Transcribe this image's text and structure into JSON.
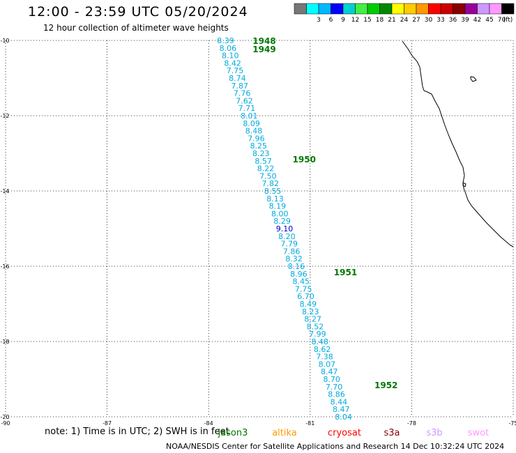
{
  "header": {
    "title": "12:00 - 23:59 UTC 05/20/2024",
    "subtitle": "12 hour collection of altimeter wave heights"
  },
  "legend": {
    "swatches": [
      {
        "color": "#777777",
        "label": ""
      },
      {
        "color": "#00ffff",
        "label": "3"
      },
      {
        "color": "#00b8ff",
        "label": "6"
      },
      {
        "color": "#0000ff",
        "label": "9"
      },
      {
        "color": "#00d0d0",
        "label": "12"
      },
      {
        "color": "#44ee44",
        "label": "15"
      },
      {
        "color": "#00cc00",
        "label": "18"
      },
      {
        "color": "#008800",
        "label": "21"
      },
      {
        "color": "#ffff00",
        "label": "24"
      },
      {
        "color": "#ffcc00",
        "label": "27"
      },
      {
        "color": "#ff9900",
        "label": "30"
      },
      {
        "color": "#ff0000",
        "label": "33"
      },
      {
        "color": "#cc0000",
        "label": "36"
      },
      {
        "color": "#880000",
        "label": "39"
      },
      {
        "color": "#990099",
        "label": "42"
      },
      {
        "color": "#cc99ff",
        "label": "45"
      },
      {
        "color": "#ff99ff",
        "label": "70"
      },
      {
        "color": "#000000",
        "label": "(ft)"
      }
    ]
  },
  "map": {
    "lon_range": [
      -90,
      -75
    ],
    "lat_range": [
      -20,
      -10
    ],
    "lat_labels": [
      "-10",
      "-12",
      "-14",
      "-16",
      "-18",
      "-20"
    ],
    "lon_labels": [
      "-90",
      "-87",
      "-84",
      "-81",
      "-78",
      "-75"
    ],
    "colors": {
      "swh": "#00aadd",
      "swh_max": "#0000cc",
      "time": "#007700"
    },
    "time_labels": [
      {
        "text": "1948",
        "lat": -10.0,
        "lon": -82.7
      },
      {
        "text": "1949",
        "lat": -10.22,
        "lon": -82.7
      },
      {
        "text": "1950",
        "lat": -13.15,
        "lon": -81.52
      },
      {
        "text": "1951",
        "lat": -16.15,
        "lon": -80.3
      },
      {
        "text": "1952",
        "lat": -19.15,
        "lon": -79.1
      }
    ],
    "track_start": {
      "lat": -10.0,
      "lon": -83.5
    },
    "track_step": {
      "lat": -0.2,
      "lon": 0.0697
    },
    "wave_heights": [
      "8.39",
      "8.06",
      "8.10",
      "8.42",
      "7.75",
      "8.74",
      "7.87",
      "7.76",
      "7.62",
      "7.71",
      "8.01",
      "8.09",
      "8.48",
      "7.96",
      "8.25",
      "8.23",
      "8.57",
      "8.22",
      "7.50",
      "7.82",
      "8.55",
      "8.13",
      "8.19",
      "8.00",
      "8.29",
      "9.10",
      "8.20",
      "7.79",
      "7.86",
      "8.32",
      "8.16",
      "8.96",
      "8.45",
      "7.75",
      "6.70",
      "8.49",
      "8.23",
      "8.27",
      "8.52",
      "7.99",
      "8.48",
      "8.62",
      "7.38",
      "8.07",
      "8.47",
      "8.70",
      "7.70",
      "8.86",
      "8.44",
      "8.47",
      "8.04"
    ],
    "max_index": 25
  },
  "footer": {
    "note": "note:  1) Time is in UTC; 2) SWH is in feet",
    "satellites": [
      {
        "name": "jason3",
        "color": "#007700"
      },
      {
        "name": "altika",
        "color": "#ff9900"
      },
      {
        "name": "cryosat",
        "color": "#ff0000"
      },
      {
        "name": "s3a",
        "color": "#880000"
      },
      {
        "name": "s3b",
        "color": "#cc99ff"
      },
      {
        "name": "swot",
        "color": "#ff99ff"
      }
    ],
    "credit": "NOAA/NESDIS Center for Satellite Applications and Research    14 Dec 10:32:24 UTC 2024"
  }
}
